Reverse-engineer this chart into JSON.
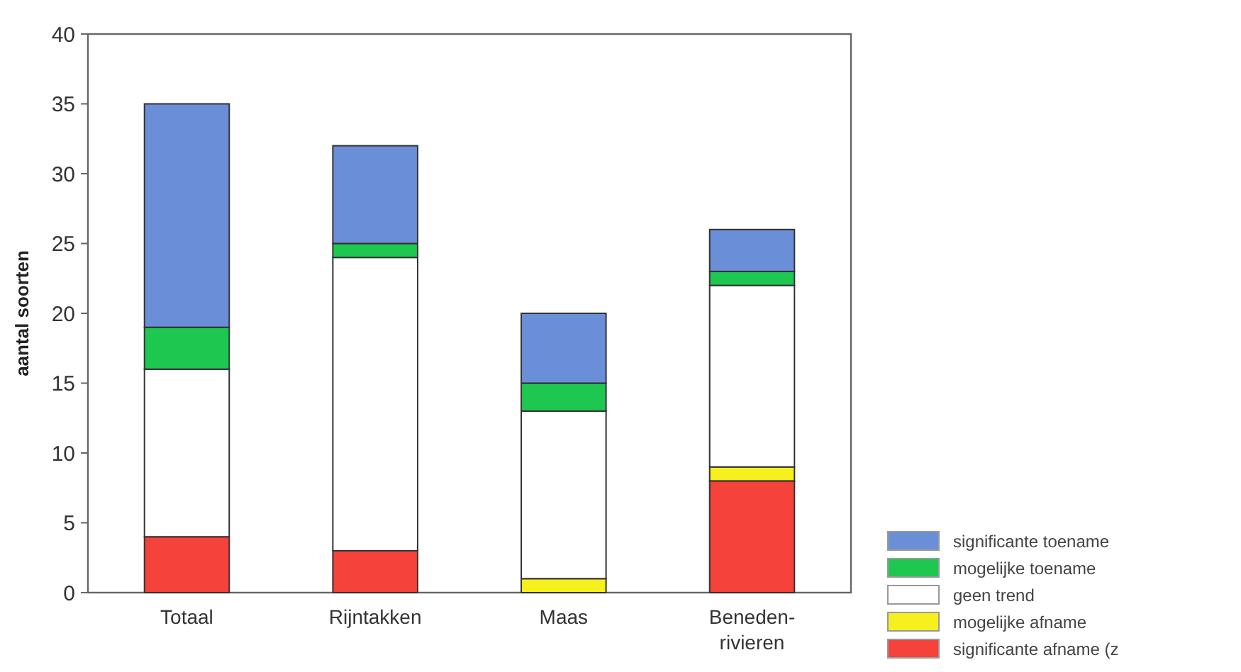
{
  "chart_data": {
    "type": "bar",
    "stacked": true,
    "ylabel": "aantal soorten",
    "categories": [
      "Totaal",
      "Rijntakken",
      "Maas",
      "Beneden-rivieren"
    ],
    "ylim": [
      0,
      40
    ],
    "yticks": [
      0,
      5,
      10,
      15,
      20,
      25,
      30,
      35,
      40
    ],
    "grid": false,
    "legend": "bottom right",
    "series": [
      {
        "name": "significante afname (z",
        "color": "#f5423a",
        "values": [
          4,
          3,
          0,
          8
        ]
      },
      {
        "name": "mogelijke afname",
        "color": "#f5f01e",
        "values": [
          0,
          0,
          1,
          1
        ]
      },
      {
        "name": "geen trend",
        "color": "#ffffff",
        "values": [
          12,
          21,
          12,
          13
        ]
      },
      {
        "name": "mogelijke toename",
        "color": "#1ec850",
        "values": [
          3,
          1,
          2,
          1
        ]
      },
      {
        "name": "significante toename",
        "color": "#6a8fd8",
        "values": [
          16,
          7,
          5,
          3
        ]
      }
    ]
  }
}
